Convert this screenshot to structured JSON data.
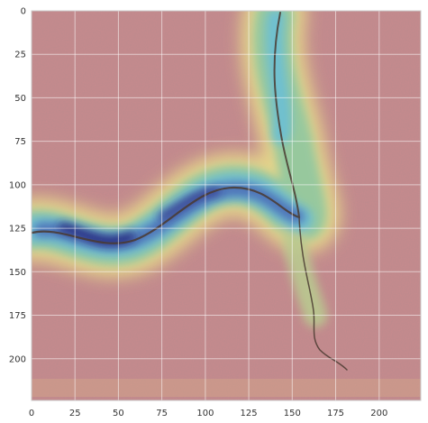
{
  "figure": {
    "type": "heatmap-overlay",
    "background_image": "concrete surface with crack",
    "colormap": "jet",
    "grid": true,
    "x_axis": {
      "range": [
        0,
        224
      ],
      "ticks": [
        0,
        25,
        50,
        75,
        100,
        125,
        150,
        175,
        200
      ]
    },
    "y_axis": {
      "range": [
        0,
        224
      ],
      "inverted": true,
      "ticks": [
        0,
        25,
        50,
        75,
        100,
        125,
        150,
        175,
        200
      ]
    }
  }
}
